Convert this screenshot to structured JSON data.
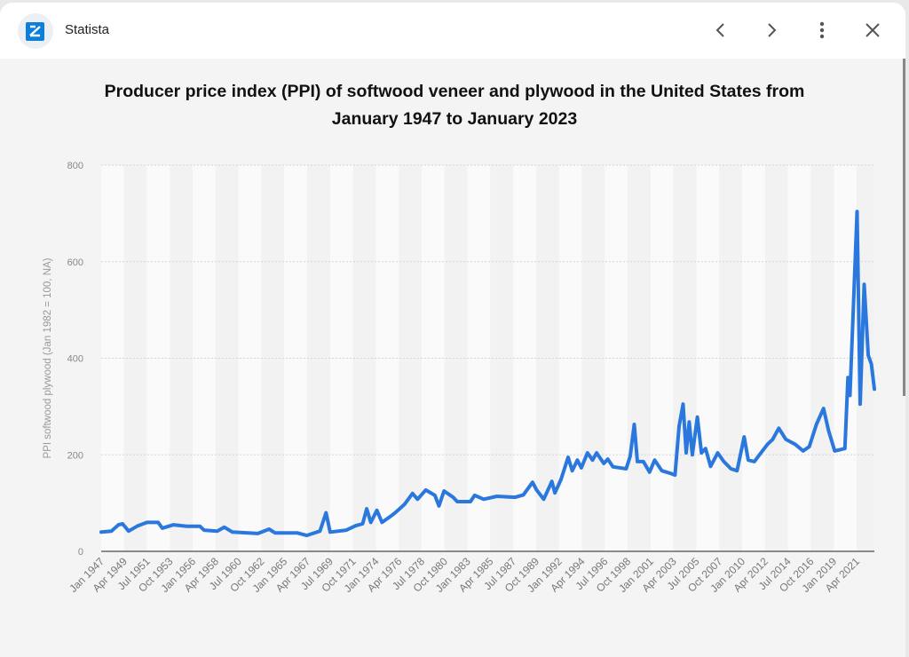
{
  "header": {
    "app_name": "Statista",
    "icons": [
      "statista-logo",
      "chevron-left-icon",
      "chevron-right-icon",
      "more-vert-icon",
      "close-icon"
    ]
  },
  "chart_data": {
    "type": "line",
    "title_line1": "Producer price index (PPI) of softwood veneer and plywood in the United States from",
    "title_line2": "January 1947 to January 2023",
    "xlabel": "",
    "ylabel": "PPI softwood plywood (Jan 1982 = 100, NA)",
    "ylim": [
      0,
      800
    ],
    "yticks": [
      "0",
      "200",
      "400",
      "600",
      "800"
    ],
    "xlim": [
      "Jan 1947",
      "Jan 2023"
    ],
    "xticks": [
      "Jan 1947",
      "Apr 1949",
      "Jul 1951",
      "Oct 1953",
      "Jan 1956",
      "Apr 1958",
      "Jul 1960",
      "Oct 1962",
      "Jan 1965",
      "Apr 1967",
      "Jul 1969",
      "Oct 1971",
      "Jan 1974",
      "Apr 1976",
      "Jul 1978",
      "Oct 1980",
      "Jan 1983",
      "Apr 1985",
      "Jul 1987",
      "Oct 1989",
      "Jan 1992",
      "Apr 1994",
      "Jul 1996",
      "Oct 1998",
      "Jan 2001",
      "Apr 2003",
      "Jul 2005",
      "Oct 2007",
      "Jan 2010",
      "Apr 2012",
      "Jul 2014",
      "Oct 2016",
      "Jan 2019",
      "Apr 2021"
    ],
    "grid": true,
    "color": "#2a78de",
    "points": [
      [
        1947.0,
        40
      ],
      [
        1948.0,
        42
      ],
      [
        1948.7,
        55
      ],
      [
        1949.1,
        57
      ],
      [
        1949.7,
        42
      ],
      [
        1950.6,
        53
      ],
      [
        1951.5,
        60
      ],
      [
        1952.6,
        60
      ],
      [
        1953.0,
        48
      ],
      [
        1954.1,
        55
      ],
      [
        1955.4,
        52
      ],
      [
        1956.7,
        52
      ],
      [
        1957.1,
        44
      ],
      [
        1958.4,
        42
      ],
      [
        1959.1,
        50
      ],
      [
        1959.9,
        40
      ],
      [
        1962.4,
        37
      ],
      [
        1963.5,
        46
      ],
      [
        1964.1,
        38
      ],
      [
        1966.3,
        38
      ],
      [
        1967.2,
        33
      ],
      [
        1968.5,
        42
      ],
      [
        1969.1,
        80
      ],
      [
        1969.5,
        40
      ],
      [
        1971.1,
        44
      ],
      [
        1972.0,
        53
      ],
      [
        1972.7,
        57
      ],
      [
        1973.1,
        88
      ],
      [
        1973.5,
        60
      ],
      [
        1974.1,
        85
      ],
      [
        1974.6,
        60
      ],
      [
        1975.4,
        72
      ],
      [
        1975.9,
        80
      ],
      [
        1976.8,
        97
      ],
      [
        1977.6,
        120
      ],
      [
        1978.1,
        108
      ],
      [
        1978.9,
        127
      ],
      [
        1979.8,
        116
      ],
      [
        1980.2,
        94
      ],
      [
        1980.7,
        125
      ],
      [
        1981.6,
        112
      ],
      [
        1982.0,
        103
      ],
      [
        1983.3,
        103
      ],
      [
        1983.7,
        116
      ],
      [
        1984.6,
        108
      ],
      [
        1985.9,
        114
      ],
      [
        1987.7,
        112
      ],
      [
        1988.5,
        117
      ],
      [
        1989.4,
        143
      ],
      [
        1989.8,
        127
      ],
      [
        1990.5,
        108
      ],
      [
        1991.3,
        145
      ],
      [
        1991.6,
        121
      ],
      [
        1992.2,
        149
      ],
      [
        1992.9,
        195
      ],
      [
        1993.3,
        167
      ],
      [
        1993.8,
        189
      ],
      [
        1994.2,
        173
      ],
      [
        1994.8,
        204
      ],
      [
        1995.3,
        189
      ],
      [
        1995.7,
        204
      ],
      [
        1996.4,
        182
      ],
      [
        1996.8,
        191
      ],
      [
        1997.3,
        175
      ],
      [
        1998.6,
        171
      ],
      [
        1999.0,
        197
      ],
      [
        1999.4,
        263
      ],
      [
        1999.7,
        186
      ],
      [
        2000.3,
        186
      ],
      [
        2000.9,
        164
      ],
      [
        2001.4,
        189
      ],
      [
        2002.1,
        167
      ],
      [
        2002.9,
        162
      ],
      [
        2003.4,
        158
      ],
      [
        2003.8,
        259
      ],
      [
        2004.2,
        305
      ],
      [
        2004.5,
        204
      ],
      [
        2004.8,
        268
      ],
      [
        2005.1,
        200
      ],
      [
        2005.6,
        278
      ],
      [
        2006.0,
        204
      ],
      [
        2006.4,
        213
      ],
      [
        2006.9,
        176
      ],
      [
        2007.6,
        204
      ],
      [
        2008.2,
        186
      ],
      [
        2008.9,
        171
      ],
      [
        2009.5,
        167
      ],
      [
        2010.2,
        237
      ],
      [
        2010.6,
        189
      ],
      [
        2011.2,
        186
      ],
      [
        2011.7,
        200
      ],
      [
        2012.5,
        222
      ],
      [
        2013.0,
        232
      ],
      [
        2013.6,
        255
      ],
      [
        2014.3,
        232
      ],
      [
        2015.2,
        222
      ],
      [
        2016.0,
        208
      ],
      [
        2016.6,
        217
      ],
      [
        2017.3,
        263
      ],
      [
        2018.0,
        296
      ],
      [
        2018.5,
        250
      ],
      [
        2019.1,
        208
      ],
      [
        2020.1,
        213
      ],
      [
        2020.4,
        360
      ],
      [
        2020.6,
        323
      ],
      [
        2021.3,
        704
      ],
      [
        2021.6,
        305
      ],
      [
        2022.0,
        553
      ],
      [
        2022.4,
        406
      ],
      [
        2022.7,
        388
      ],
      [
        2023.0,
        336
      ]
    ]
  }
}
